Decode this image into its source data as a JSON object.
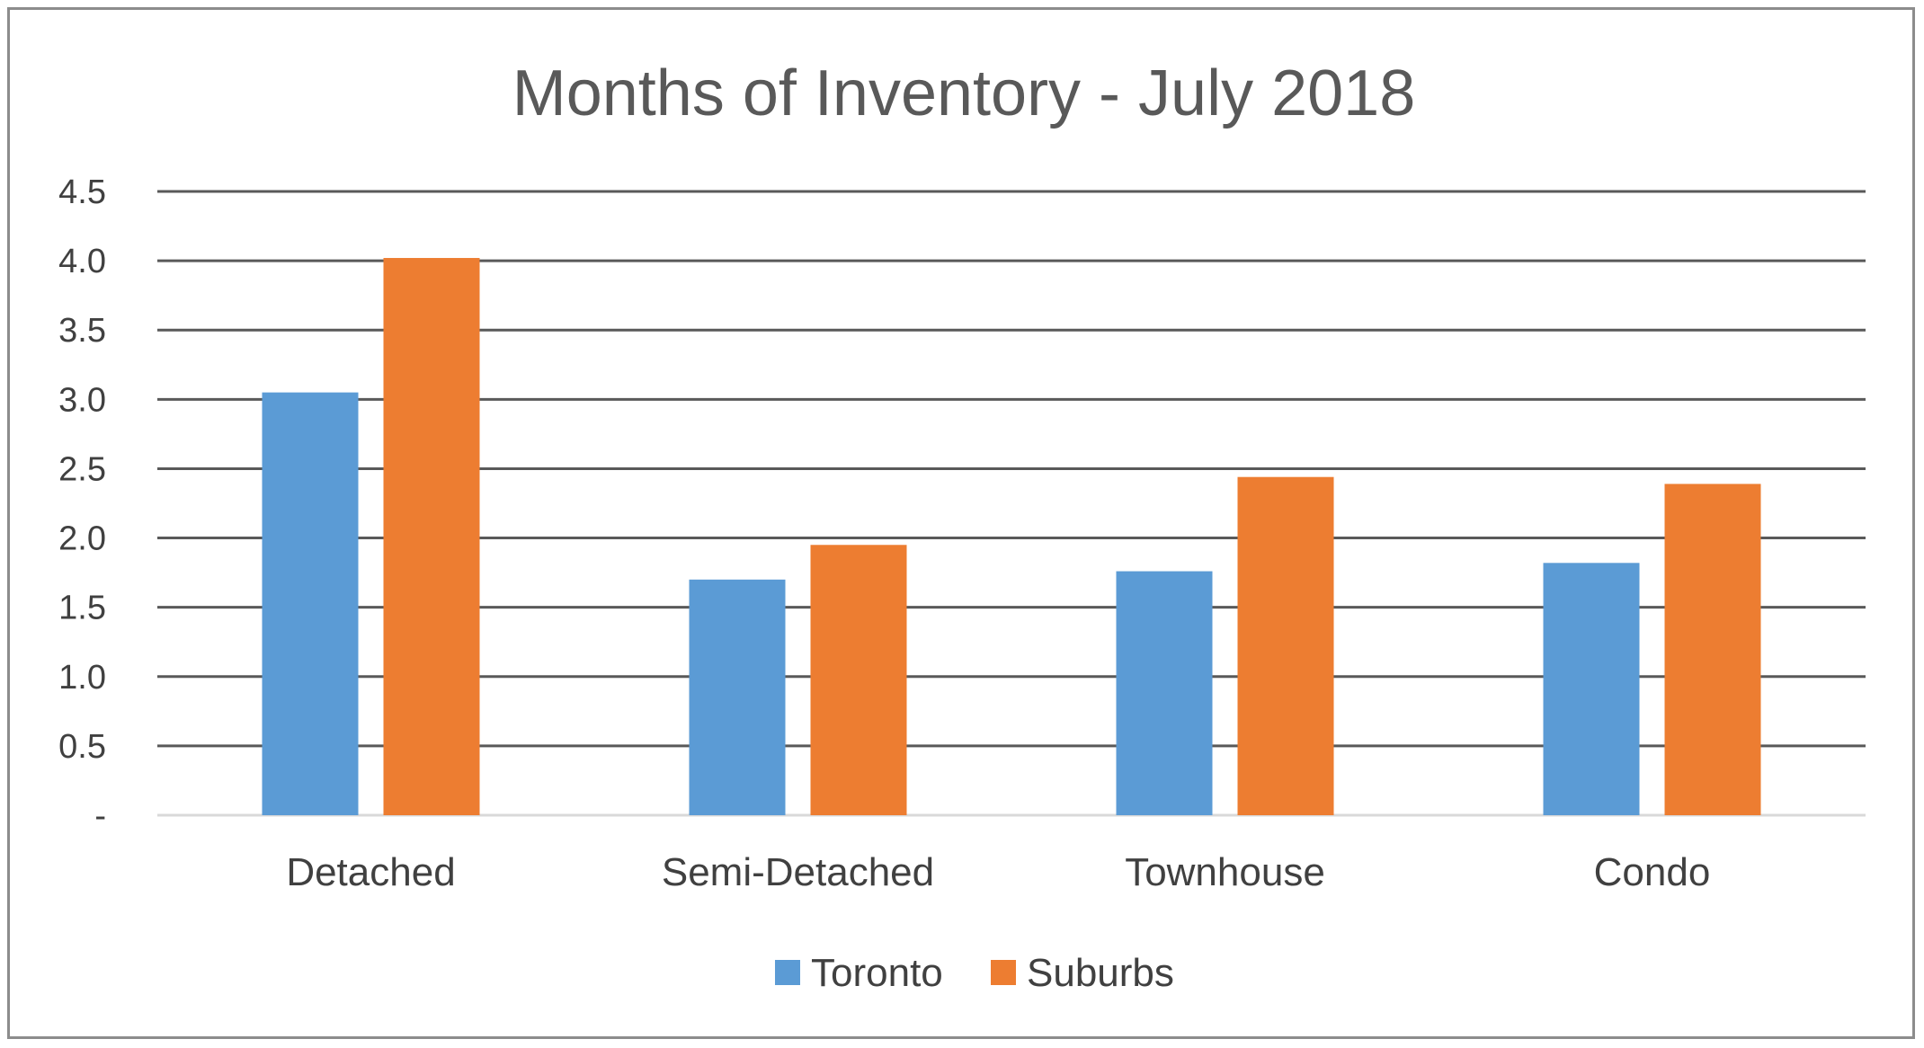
{
  "chart_data": {
    "type": "bar",
    "title": "Months of Inventory - July 2018",
    "xlabel": "",
    "ylabel": "",
    "categories": [
      "Detached",
      "Semi-Detached",
      "Townhouse",
      "Condo"
    ],
    "series": [
      {
        "name": "Toronto",
        "color": "#5b9bd5",
        "values": [
          3.05,
          1.7,
          1.76,
          1.82
        ]
      },
      {
        "name": "Suburbs",
        "color": "#ed7d31",
        "values": [
          4.02,
          1.95,
          2.44,
          2.39
        ]
      }
    ],
    "ylim": [
      0,
      4.5
    ],
    "yticks": [
      {
        "value": 0,
        "label": "-"
      },
      {
        "value": 0.5,
        "label": "0.5"
      },
      {
        "value": 1.0,
        "label": "1.0"
      },
      {
        "value": 1.5,
        "label": "1.5"
      },
      {
        "value": 2.0,
        "label": "2.0"
      },
      {
        "value": 2.5,
        "label": "2.5"
      },
      {
        "value": 3.0,
        "label": "3.0"
      },
      {
        "value": 3.5,
        "label": "3.5"
      },
      {
        "value": 4.0,
        "label": "4.0"
      },
      {
        "value": 4.5,
        "label": "4.5"
      }
    ],
    "grid": true,
    "legend_position": "bottom-center"
  }
}
